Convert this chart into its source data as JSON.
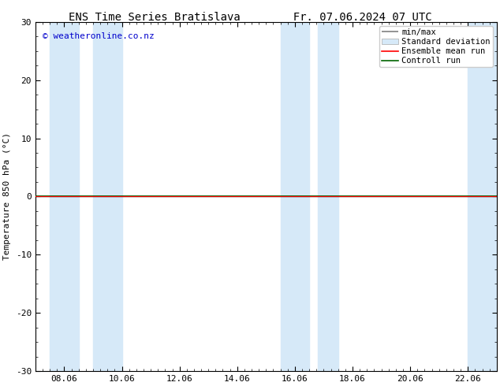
{
  "title": "ENS Time Series Bratislava",
  "title2": "Fr. 07.06.2024 07 UTC",
  "ylabel": "Temperature 850 hPa (°C)",
  "copyright": "© weatheronline.co.nz",
  "ylim": [
    -30,
    30
  ],
  "yticks": [
    -30,
    -20,
    -10,
    0,
    10,
    20,
    30
  ],
  "x_tick_labels": [
    "08.06",
    "10.06",
    "12.06",
    "14.06",
    "16.06",
    "18.06",
    "20.06",
    "22.06"
  ],
  "tick_positions": [
    1,
    3,
    5,
    7,
    9,
    11,
    13,
    15
  ],
  "xlim": [
    0,
    16
  ],
  "bg_color": "#ffffff",
  "plot_bg_color": "#ffffff",
  "shaded_bands": [
    [
      0.0,
      2.0
    ],
    [
      2.5,
      3.5
    ],
    [
      8.5,
      10.5
    ],
    [
      15.0,
      16.0
    ]
  ],
  "shade_color": "#d6e9f8",
  "zero_line_color": "#000000",
  "zero_line_y": 0,
  "control_run_color": "#006400",
  "ensemble_mean_color": "#ff0000",
  "minmax_color": "#808080",
  "stddev_color": "#c5dff0",
  "legend_labels": [
    "min/max",
    "Standard deviation",
    "Ensemble mean run",
    "Controll run"
  ],
  "title_fontsize": 10,
  "axis_fontsize": 8,
  "tick_fontsize": 8,
  "copyright_color": "#0000cc",
  "copyright_fontsize": 8,
  "legend_fontsize": 7.5
}
